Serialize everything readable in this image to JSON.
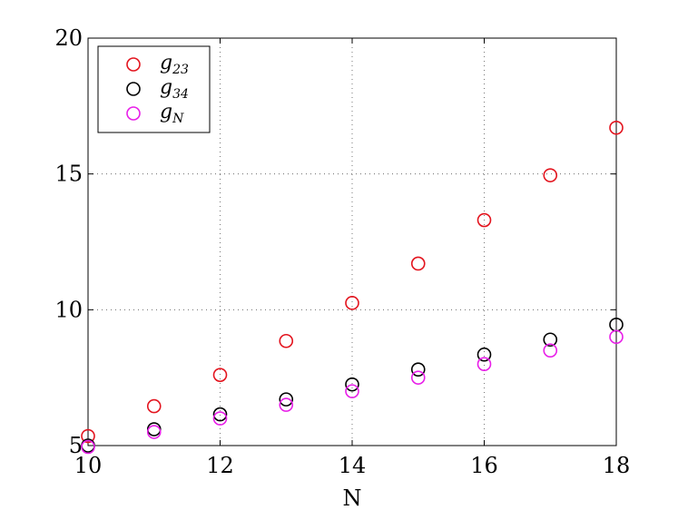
{
  "chart_data": {
    "type": "scatter",
    "title": "",
    "xlabel": "N",
    "ylabel": "",
    "xlim": [
      10,
      18
    ],
    "ylim": [
      5,
      20
    ],
    "xticks": [
      10,
      12,
      14,
      16,
      18
    ],
    "yticks": [
      5,
      10,
      15,
      20
    ],
    "grid": true,
    "legend_position": "top-left",
    "series": [
      {
        "name": "g23",
        "legend_base": "g",
        "legend_sub": "23",
        "color": "#e3141e",
        "marker": "circle-open",
        "x": [
          10,
          11,
          12,
          13,
          14,
          15,
          16,
          17,
          18
        ],
        "y": [
          5.35,
          6.45,
          7.6,
          8.85,
          10.25,
          11.7,
          13.3,
          14.95,
          16.7
        ]
      },
      {
        "name": "g34",
        "legend_base": "g",
        "legend_sub": "34",
        "color": "#000000",
        "marker": "circle-open",
        "x": [
          10,
          11,
          12,
          13,
          14,
          15,
          16,
          17,
          18
        ],
        "y": [
          5.0,
          5.6,
          6.15,
          6.7,
          7.25,
          7.8,
          8.35,
          8.9,
          9.45
        ]
      },
      {
        "name": "gN",
        "legend_base": "g",
        "legend_sub": "N",
        "color": "#e81ee8",
        "marker": "circle-open",
        "x": [
          10,
          11,
          12,
          13,
          14,
          15,
          16,
          17,
          18
        ],
        "y": [
          4.95,
          5.5,
          6.0,
          6.5,
          7.0,
          7.5,
          8.0,
          8.5,
          9.0
        ]
      }
    ]
  }
}
